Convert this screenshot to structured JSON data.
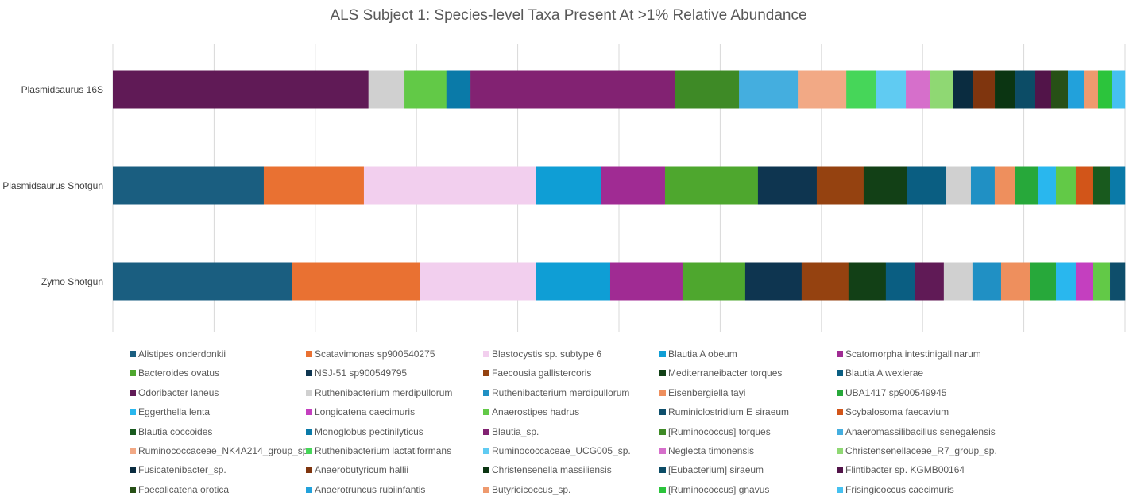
{
  "chart_data": {
    "type": "bar",
    "orientation": "horizontal",
    "stacked": "percent",
    "title": "ALS Subject 1: Species-level Taxa Present At >1% Relative Abundance",
    "xlim": [
      0,
      100
    ],
    "grid": true,
    "legend_position": "bottom",
    "series": [
      {
        "name": "Alistipes onderdonkii",
        "color": "#1a5e80"
      },
      {
        "name": "Scatavimonas sp900540275",
        "color": "#e97132"
      },
      {
        "name": "Blastocystis sp. subtype 6",
        "color": "#f2cfee"
      },
      {
        "name": "Blautia A obeum",
        "color": "#0f9ed5"
      },
      {
        "name": "Scatomorpha intestinigallinarum",
        "color": "#a02b93"
      },
      {
        "name": "Bacteroides ovatus",
        "color": "#4ea72e"
      },
      {
        "name": "NSJ-51 sp900549795",
        "color": "#0e3550"
      },
      {
        "name": "Faecousia gallistercoris",
        "color": "#954210"
      },
      {
        "name": "Mediterraneibacter torques",
        "color": "#124016"
      },
      {
        "name": "Blautia A wexlerae",
        "color": "#0a5e82"
      },
      {
        "name": "Odoribacter laneus",
        "color": "#601a56"
      },
      {
        "name": "Ruthenibacterium merdipullorum",
        "color": "#d0d0d0"
      },
      {
        "name": "Ruthenibacterium merdipullorum",
        "color": "#2090c4"
      },
      {
        "name": "Eisenbergiella tayi",
        "color": "#ee8f5d"
      },
      {
        "name": "UBA1417 sp900549945",
        "color": "#27a83a"
      },
      {
        "name": "Eggerthella lenta",
        "color": "#29b7ee"
      },
      {
        "name": "Longicatena caecimuris",
        "color": "#c43fbf"
      },
      {
        "name": "Anaerostipes hadrus",
        "color": "#62c947"
      },
      {
        "name": "Ruminiclostridium E siraeum",
        "color": "#0e4e6b"
      },
      {
        "name": "Scybalosoma faecavium",
        "color": "#d25519"
      },
      {
        "name": "Blautia coccoides",
        "color": "#195a1e"
      },
      {
        "name": "Monoglobus pectinilyticus",
        "color": "#0a7aa8"
      },
      {
        "name": "Blautia_sp.",
        "color": "#822272"
      },
      {
        "name": "[Ruminococcus] torques",
        "color": "#3e8a26"
      },
      {
        "name": "Anaeromassilibacillus senegalensis",
        "color": "#44aedf"
      },
      {
        "name": "Ruminococcaceae_NK4A214_group_sp.",
        "color": "#f2a985"
      },
      {
        "name": "Ruthenibacterium lactatiformans",
        "color": "#46d659"
      },
      {
        "name": "Ruminococcaceae_UCG005_sp.",
        "color": "#60cbf2"
      },
      {
        "name": "Neglecta timonensis",
        "color": "#d66fcb"
      },
      {
        "name": "Christensenellaceae_R7_group_sp.",
        "color": "#8fd873"
      },
      {
        "name": "Fusicatenibacter_sp.",
        "color": "#0a2c40"
      },
      {
        "name": "Anaerobutyricum hallii",
        "color": "#7f350e"
      },
      {
        "name": "Christensenella massiliensis",
        "color": "#0b3512"
      },
      {
        "name": "[Eubacterium] siraeum",
        "color": "#0c4c66"
      },
      {
        "name": "Flintibacter sp. KGMB00164",
        "color": "#521449"
      },
      {
        "name": "Faecalicatena orotica",
        "color": "#275016"
      },
      {
        "name": "Anaerotruncus rubiinfantis",
        "color": "#22a1db"
      },
      {
        "name": "Butyricicoccus_sp.",
        "color": "#ee9a6e"
      },
      {
        "name": "[Ruminococcus] gnavus",
        "color": "#2cc43c"
      },
      {
        "name": "Frisingicoccus caecimuris",
        "color": "#45c0f0"
      }
    ],
    "categories": [
      "Plasmidsaurus 16S",
      "Plasmidsaurus Shotgun",
      "Zymo Shotgun"
    ],
    "bars": [
      {
        "category": "Plasmidsaurus 16S",
        "segments": [
          {
            "series": 10,
            "value": 25.25
          },
          {
            "series": 11,
            "value": 3.56
          },
          {
            "series": 17,
            "value": 4.14
          },
          {
            "series": 21,
            "value": 2.38
          },
          {
            "series": 22,
            "value": 20.17
          },
          {
            "series": 23,
            "value": 6.36
          },
          {
            "series": 24,
            "value": 5.81
          },
          {
            "series": 25,
            "value": 4.79
          },
          {
            "series": 26,
            "value": 2.9
          },
          {
            "series": 27,
            "value": 2.98
          },
          {
            "series": 28,
            "value": 2.43
          },
          {
            "series": 29,
            "value": 2.2
          },
          {
            "series": 30,
            "value": 2.04
          },
          {
            "series": 31,
            "value": 2.12
          },
          {
            "series": 32,
            "value": 2.04
          },
          {
            "series": 33,
            "value": 1.96
          },
          {
            "series": 34,
            "value": 1.57
          },
          {
            "series": 35,
            "value": 1.65
          },
          {
            "series": 36,
            "value": 1.57
          },
          {
            "series": 37,
            "value": 1.41
          },
          {
            "series": 38,
            "value": 1.41
          },
          {
            "series": 39,
            "value": 1.26
          }
        ]
      },
      {
        "category": "Plasmidsaurus Shotgun",
        "segments": [
          {
            "series": 0,
            "value": 14.91
          },
          {
            "series": 1,
            "value": 9.89
          },
          {
            "series": 2,
            "value": 17.03
          },
          {
            "series": 3,
            "value": 6.44
          },
          {
            "series": 4,
            "value": 6.28
          },
          {
            "series": 5,
            "value": 9.18
          },
          {
            "series": 6,
            "value": 5.81
          },
          {
            "series": 7,
            "value": 4.63
          },
          {
            "series": 8,
            "value": 4.32
          },
          {
            "series": 9,
            "value": 3.85
          },
          {
            "series": 11,
            "value": 2.43
          },
          {
            "series": 12,
            "value": 2.35
          },
          {
            "series": 13,
            "value": 2.04
          },
          {
            "series": 14,
            "value": 2.28
          },
          {
            "series": 15,
            "value": 1.73
          },
          {
            "series": 17,
            "value": 1.96
          },
          {
            "series": 19,
            "value": 1.65
          },
          {
            "series": 20,
            "value": 1.73
          },
          {
            "series": 21,
            "value": 1.49
          }
        ]
      },
      {
        "category": "Zymo Shotgun",
        "segments": [
          {
            "series": 0,
            "value": 17.74
          },
          {
            "series": 1,
            "value": 12.64
          },
          {
            "series": 2,
            "value": 11.46
          },
          {
            "series": 3,
            "value": 7.3
          },
          {
            "series": 4,
            "value": 7.14
          },
          {
            "series": 5,
            "value": 6.2
          },
          {
            "series": 6,
            "value": 5.57
          },
          {
            "series": 7,
            "value": 4.63
          },
          {
            "series": 8,
            "value": 3.69
          },
          {
            "series": 9,
            "value": 2.9
          },
          {
            "series": 10,
            "value": 2.83
          },
          {
            "series": 11,
            "value": 2.83
          },
          {
            "series": 12,
            "value": 2.83
          },
          {
            "series": 13,
            "value": 2.83
          },
          {
            "series": 14,
            "value": 2.59
          },
          {
            "series": 15,
            "value": 1.96
          },
          {
            "series": 16,
            "value": 1.73
          },
          {
            "series": 17,
            "value": 1.65
          },
          {
            "series": 18,
            "value": 1.49
          }
        ]
      }
    ]
  }
}
